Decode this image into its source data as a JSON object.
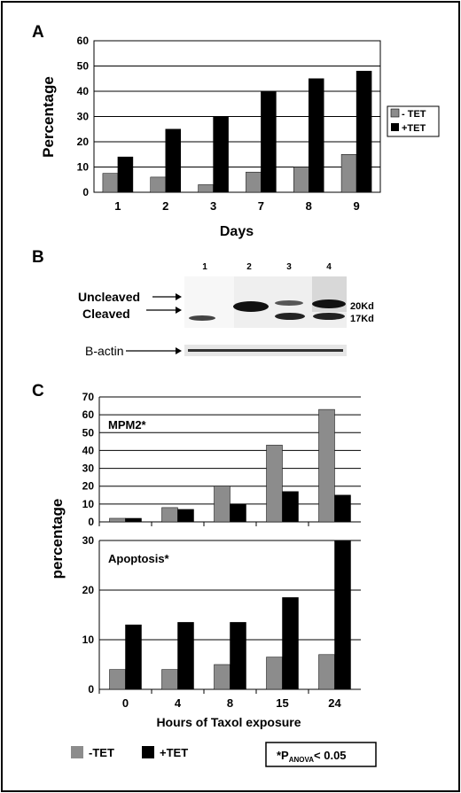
{
  "panel_labels": {
    "a": "A",
    "b": "B",
    "c": "C"
  },
  "colors": {
    "minus_tet": "#8c8c8c",
    "plus_tet": "#000000",
    "grid": "#000000",
    "frame": "#000000"
  },
  "chart_data": [
    {
      "id": "A",
      "type": "bar",
      "xlabel": "Days",
      "ylabel": "Percentage",
      "ylim": [
        0,
        60
      ],
      "yticks": [
        0,
        10,
        20,
        30,
        40,
        50,
        60
      ],
      "grid": true,
      "legend_position": "right",
      "categories": [
        "1",
        "2",
        "3",
        "7",
        "8",
        "9"
      ],
      "series": [
        {
          "name": "- TET",
          "values": [
            7.5,
            6,
            3,
            8,
            10,
            15
          ]
        },
        {
          "name": "+TET",
          "values": [
            14,
            25,
            30,
            40,
            45,
            48
          ]
        }
      ]
    },
    {
      "id": "C-MPM2",
      "type": "bar",
      "title": "MPM2*",
      "ylim": [
        0,
        70
      ],
      "yticks": [
        0,
        10,
        20,
        30,
        40,
        50,
        60,
        70
      ],
      "grid": true,
      "categories": [
        "0",
        "4",
        "8",
        "15",
        "24"
      ],
      "series": [
        {
          "name": "-TET",
          "values": [
            2,
            8,
            20,
            43,
            63
          ]
        },
        {
          "name": "+TET",
          "values": [
            2,
            7,
            10,
            17,
            15
          ]
        }
      ]
    },
    {
      "id": "C-Apoptosis",
      "type": "bar",
      "title": "Apoptosis*",
      "ylabel": "percentage",
      "xlabel": "Hours of Taxol exposure",
      "ylim": [
        0,
        30
      ],
      "yticks": [
        0,
        10,
        20,
        30
      ],
      "grid": true,
      "categories": [
        "0",
        "4",
        "8",
        "15",
        "24"
      ],
      "series": [
        {
          "name": "-TET",
          "values": [
            4,
            4,
            5,
            6.5,
            7
          ]
        },
        {
          "name": "+TET",
          "values": [
            13,
            13.5,
            13.5,
            18.5,
            30
          ]
        }
      ]
    }
  ],
  "blot": {
    "lane_labels": [
      "1",
      "2",
      "3",
      "4"
    ],
    "uncleaved_label": "Uncleaved",
    "cleaved_label": "Cleaved",
    "size_20": "20Kd",
    "size_17": "17Kd",
    "actin_label": "B-actin"
  },
  "legend_c": {
    "minus": "-TET",
    "plus": "+TET"
  },
  "anova_note": {
    "prefix": "*P",
    "sub": "ANOVA",
    "suffix": "< 0.05"
  }
}
